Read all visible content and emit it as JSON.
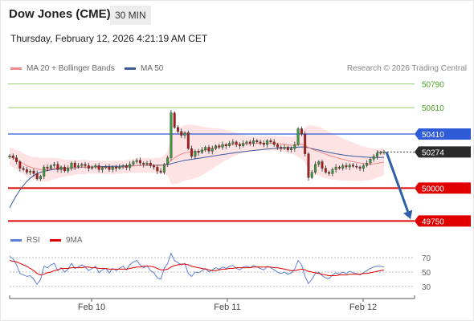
{
  "header": {
    "title": "Dow Jones (CME)",
    "timeframe": "30 MIN",
    "timestamp": "Thursday, February 12, 2026 4:21:19 AM CET"
  },
  "legend": {
    "ma20_label": "MA 20 + Bollinger Bands",
    "ma50_label": "MA 50",
    "credit": "Research © 2026 Trading Central"
  },
  "rsi_legend": {
    "rsi_label": "RSI",
    "ma_label": "9MA"
  },
  "colors": {
    "bull": "#3c9a3c",
    "bear": "#b21a1a",
    "ma20": "#f08a8a",
    "band_fill": "#fde3e3",
    "ma50": "#3a5a9a",
    "resistance": "#8fd06a",
    "pivot": "#2e5bd8",
    "support": "#e00000",
    "arrow": "#2f5fa8",
    "rsi": "#5b7fd6",
    "rsi_ma": "#e00000"
  },
  "chart_data": [
    {
      "type": "candlestick",
      "title": "Dow Jones (CME)",
      "timeframe": "30 MIN",
      "x_labels": [
        "Feb 10",
        "Feb 11",
        "Feb 12"
      ],
      "ylim": [
        49710,
        50830
      ],
      "levels": [
        {
          "value": 50790,
          "label": "50790",
          "kind": "resistance"
        },
        {
          "value": 50610,
          "label": "50610",
          "kind": "resistance"
        },
        {
          "value": 50410,
          "label": "50410",
          "kind": "pivot"
        },
        {
          "value": 50274,
          "label": "50274",
          "kind": "last"
        },
        {
          "value": 50000,
          "label": "50000",
          "kind": "support"
        },
        {
          "value": 49750,
          "label": "49750",
          "kind": "support"
        }
      ],
      "last_price": 50274,
      "forecast_arrow": {
        "from": 50274,
        "to": 49750
      },
      "close": [
        50245,
        50230,
        50200,
        50150,
        50140,
        50120,
        50130,
        50110,
        50070,
        50090,
        50160,
        50150,
        50170,
        50180,
        50140,
        50160,
        50130,
        50150,
        50190,
        50160,
        50170,
        50180,
        50170,
        50150,
        50160,
        50170,
        50140,
        50155,
        50160,
        50140,
        50160,
        50150,
        50160,
        50170,
        50155,
        50180,
        50200,
        50210,
        50190,
        50180,
        50190,
        50170,
        50160,
        50130,
        50120,
        50180,
        50230,
        50570,
        50460,
        50430,
        50400,
        50420,
        50300,
        50240,
        50280,
        50270,
        50290,
        50310,
        50280,
        50300,
        50320,
        50310,
        50330,
        50320,
        50340,
        50350,
        50330,
        50320,
        50340,
        50350,
        50340,
        50360,
        50350,
        50340,
        50330,
        50360,
        50350,
        50330,
        50310,
        50300,
        50310,
        50290,
        50300,
        50330,
        50450,
        50410,
        50260,
        50080,
        50120,
        50180,
        50200,
        50150,
        50120,
        50110,
        50140,
        50160,
        50150,
        50170,
        50160,
        50175,
        50165,
        50160,
        50150,
        50170,
        50190,
        50220,
        50240,
        50265,
        50270,
        50274
      ],
      "ma20": [
        50240,
        50230,
        50215,
        50200,
        50185,
        50170,
        50160,
        50150,
        50145,
        50140,
        50140,
        50140,
        50145,
        50148,
        50150,
        50152,
        50152,
        50153,
        50155,
        50157,
        50158,
        50160,
        50160,
        50160,
        50160,
        50160,
        50158,
        50157,
        50157,
        50156,
        50156,
        50157,
        50158,
        50160,
        50162,
        50165,
        50168,
        50170,
        50172,
        50173,
        50174,
        50174,
        50173,
        50172,
        50170,
        50175,
        50185,
        50210,
        50230,
        50245,
        50258,
        50268,
        50272,
        50274,
        50276,
        50278,
        50282,
        50288,
        50292,
        50300,
        50308,
        50316,
        50322,
        50326,
        50330,
        50332,
        50333,
        50334,
        50335,
        50336,
        50337,
        50338,
        50339,
        50340,
        50340,
        50341,
        50341,
        50340,
        50338,
        50335,
        50332,
        50328,
        50325,
        50324,
        50330,
        50332,
        50325,
        50308,
        50295,
        50285,
        50278,
        50268,
        50258,
        50248,
        50240,
        50232,
        50225,
        50218,
        50212,
        50206,
        50200,
        50195,
        50190,
        50186,
        50184,
        50182,
        50184,
        50188,
        50192,
        50198
      ],
      "ma50": [
        49850,
        49900,
        49945,
        49985,
        50020,
        50050,
        50075,
        50095,
        50110,
        50120,
        50128,
        50133,
        50138,
        50142,
        50145,
        50147,
        50149,
        50151,
        50153,
        50155,
        50156,
        50158,
        50159,
        50160,
        50161,
        50162,
        50163,
        50163,
        50164,
        50164,
        50165,
        50165,
        50166,
        50167,
        50168,
        50169,
        50170,
        50171,
        50172,
        50172,
        50173,
        50173,
        50174,
        50174,
        50174,
        50175,
        50178,
        50185,
        50192,
        50198,
        50204,
        50210,
        50214,
        50218,
        50222,
        50226,
        50230,
        50234,
        50238,
        50242,
        50246,
        50250,
        50254,
        50258,
        50262,
        50266,
        50270,
        50273,
        50276,
        50279,
        50282,
        50285,
        50288,
        50291,
        50294,
        50296,
        50298,
        50300,
        50302,
        50304,
        50305,
        50306,
        50307,
        50308,
        50310,
        50312,
        50311,
        50306,
        50300,
        50294,
        50288,
        50282,
        50276,
        50270,
        50265,
        50260,
        50256,
        50252,
        50248,
        50245,
        50242,
        50240,
        50238,
        50236,
        50234,
        50233,
        50232,
        50232,
        50232,
        50233
      ],
      "band_width": [
        70,
        70,
        75,
        80,
        80,
        80,
        80,
        85,
        90,
        90,
        90,
        90,
        85,
        80,
        75,
        70,
        65,
        60,
        60,
        55,
        55,
        55,
        55,
        50,
        50,
        50,
        50,
        50,
        50,
        50,
        50,
        50,
        50,
        50,
        50,
        50,
        50,
        55,
        55,
        55,
        55,
        55,
        55,
        60,
        60,
        70,
        90,
        180,
        200,
        210,
        210,
        210,
        210,
        205,
        200,
        195,
        185,
        175,
        165,
        155,
        145,
        135,
        125,
        115,
        105,
        95,
        85,
        75,
        70,
        65,
        60,
        55,
        55,
        55,
        55,
        55,
        55,
        55,
        55,
        55,
        60,
        60,
        65,
        70,
        100,
        110,
        130,
        170,
        180,
        185,
        185,
        185,
        185,
        180,
        175,
        170,
        165,
        160,
        155,
        150,
        145,
        140,
        135,
        130,
        125,
        120,
        115,
        110,
        105,
        100
      ]
    },
    {
      "type": "line",
      "title": "RSI",
      "series": [
        {
          "name": "RSI",
          "values": [
            72,
            68,
            60,
            48,
            46,
            44,
            45,
            40,
            33,
            40,
            58,
            56,
            60,
            62,
            52,
            56,
            50,
            54,
            62,
            55,
            57,
            60,
            57,
            52,
            55,
            58,
            49,
            53,
            55,
            49,
            55,
            52,
            55,
            58,
            53,
            60,
            64,
            66,
            60,
            56,
            59,
            52,
            49,
            42,
            40,
            55,
            62,
            76,
            66,
            63,
            60,
            62,
            48,
            44,
            50,
            49,
            52,
            55,
            50,
            53,
            56,
            54,
            57,
            55,
            58,
            59,
            55,
            53,
            57,
            58,
            56,
            59,
            57,
            55,
            53,
            58,
            56,
            53,
            50,
            48,
            50,
            47,
            49,
            54,
            66,
            60,
            44,
            34,
            40,
            48,
            50,
            45,
            42,
            41,
            46,
            49,
            47,
            50,
            48,
            51,
            49,
            48,
            46,
            49,
            52,
            55,
            57,
            58,
            58,
            57
          ]
        },
        {
          "name": "9MA",
          "values": [
            66,
            65,
            64,
            62,
            60,
            58,
            55,
            52,
            48,
            46,
            47,
            49,
            50,
            52,
            53,
            55,
            55,
            55,
            56,
            56,
            56,
            56,
            57,
            57,
            56,
            56,
            55,
            55,
            55,
            54,
            54,
            54,
            54,
            54,
            54,
            55,
            56,
            57,
            57,
            58,
            58,
            58,
            57,
            55,
            53,
            53,
            54,
            57,
            59,
            60,
            61,
            61,
            60,
            58,
            57,
            56,
            55,
            54,
            53,
            52,
            52,
            53,
            54,
            54,
            55,
            55,
            56,
            56,
            56,
            56,
            56,
            57,
            57,
            57,
            57,
            57,
            57,
            56,
            56,
            55,
            54,
            53,
            52,
            52,
            53,
            54,
            53,
            51,
            50,
            49,
            48,
            47,
            46,
            45,
            45,
            45,
            46,
            46,
            46,
            47,
            47,
            47,
            47,
            48,
            48,
            49,
            50,
            51,
            52,
            53
          ]
        }
      ],
      "y_ticks": [
        70,
        50,
        30
      ],
      "ylim": [
        20,
        80
      ]
    }
  ]
}
